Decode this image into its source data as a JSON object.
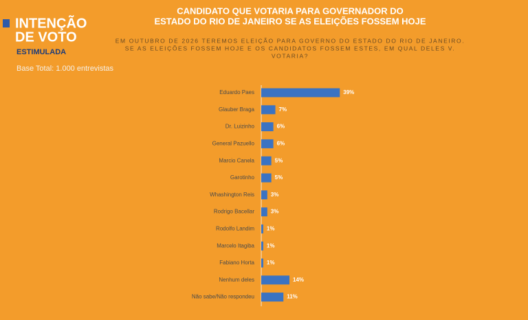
{
  "chart_data": {
    "type": "bar",
    "orientation": "horizontal",
    "header": [
      "INTENÇÃO",
      "DE VOTO"
    ],
    "header_sub": "ESTIMULADA",
    "base": "Base Total: 1.000 entrevistas",
    "title": [
      "CANDIDATO QUE VOTARIA PARA GOVERNADOR DO",
      "ESTADO DO RIO DE JANEIRO SE AS ELEIÇÕES FOSSEM HOJE"
    ],
    "subtitle": [
      "EM OUTUBRO DE 2026 TEREMOS ELEIÇÃO PARA GOVERNO DO ESTADO DO RIO DE JANEIRO.",
      "SE AS ELEIÇÕES FOSSEM HOJE E OS CANDIDATOS FOSSEM ESTES, EM QUAL DELES V.",
      "VOTARIA?"
    ],
    "categories": [
      "Eduardo Paes",
      "Glauber Braga",
      "Dr. Luizinho",
      "General Pazuello",
      "Marcio Canela",
      "Garotinho",
      "Whashington Reis",
      "Rodrigo Bacellar",
      "Rodolfo Landim",
      "Marcelo Itagiba",
      "Fabiano Horta",
      "Nenhum deles",
      "Não sabe/Não respondeu"
    ],
    "values": [
      39,
      7,
      6,
      6,
      5,
      5,
      3,
      3,
      1,
      1,
      1,
      14,
      11
    ],
    "value_labels": [
      "39%",
      "7%",
      "6%",
      "6%",
      "5%",
      "5%",
      "3%",
      "3%",
      "1%",
      "1%",
      "1%",
      "14%",
      "11%"
    ],
    "color": "#3b73c2"
  }
}
